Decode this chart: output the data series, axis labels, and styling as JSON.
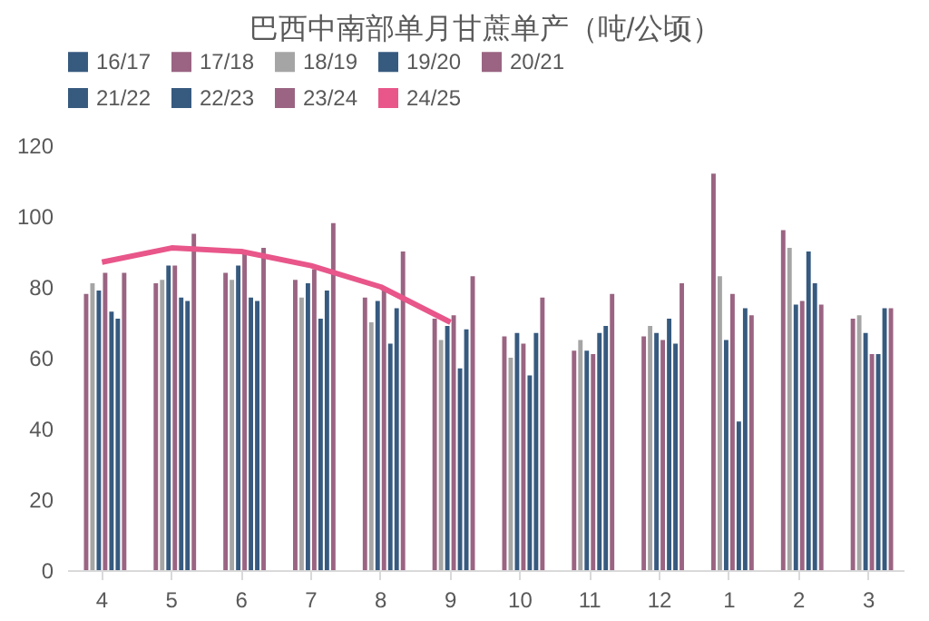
{
  "chart_data": {
    "type": "bar",
    "title": "巴西中南部单月甘蔗单产（吨/公顷）",
    "categories": [
      "4",
      "5",
      "6",
      "7",
      "8",
      "9",
      "10",
      "11",
      "12",
      "1",
      "2",
      "3"
    ],
    "ylim": [
      0,
      120
    ],
    "yticks": [
      0,
      20,
      40,
      60,
      80,
      100,
      120
    ],
    "grid": false,
    "legend": "top",
    "series": [
      {
        "name": "16/17",
        "color": "#375a7f",
        "values": [
          null,
          null,
          null,
          null,
          null,
          null,
          null,
          null,
          null,
          null,
          null,
          null
        ]
      },
      {
        "name": "17/18",
        "color": "#9a6482",
        "values": [
          78,
          81,
          84,
          82,
          77,
          71,
          66,
          62,
          66,
          112,
          96,
          71
        ]
      },
      {
        "name": "18/19",
        "color": "#a5a5a5",
        "values": [
          81,
          82,
          82,
          77,
          70,
          65,
          60,
          65,
          69,
          83,
          91,
          72
        ]
      },
      {
        "name": "19/20",
        "color": "#375a7f",
        "values": [
          79,
          86,
          86,
          81,
          76,
          69,
          67,
          62,
          67,
          65,
          75,
          67
        ]
      },
      {
        "name": "20/21",
        "color": "#9a6482",
        "values": [
          84,
          86,
          90,
          85,
          80,
          72,
          64,
          61,
          65,
          78,
          76,
          61
        ]
      },
      {
        "name": "21/22",
        "color": "#375a7f",
        "values": [
          73,
          77,
          77,
          71,
          64,
          57,
          55,
          67,
          71,
          42,
          90,
          61
        ]
      },
      {
        "name": "22/23",
        "color": "#375a7f",
        "values": [
          71,
          76,
          76,
          79,
          74,
          68,
          67,
          69,
          64,
          74,
          81,
          74
        ]
      },
      {
        "name": "23/24",
        "color": "#9a6482",
        "values": [
          84,
          95,
          91,
          98,
          90,
          83,
          77,
          78,
          81,
          72,
          75,
          74
        ]
      },
      {
        "name": "24/25",
        "color": "#e8568a",
        "type": "line",
        "values": [
          87,
          91,
          90,
          86,
          80,
          70,
          null,
          null,
          null,
          null,
          null,
          null
        ]
      }
    ]
  }
}
